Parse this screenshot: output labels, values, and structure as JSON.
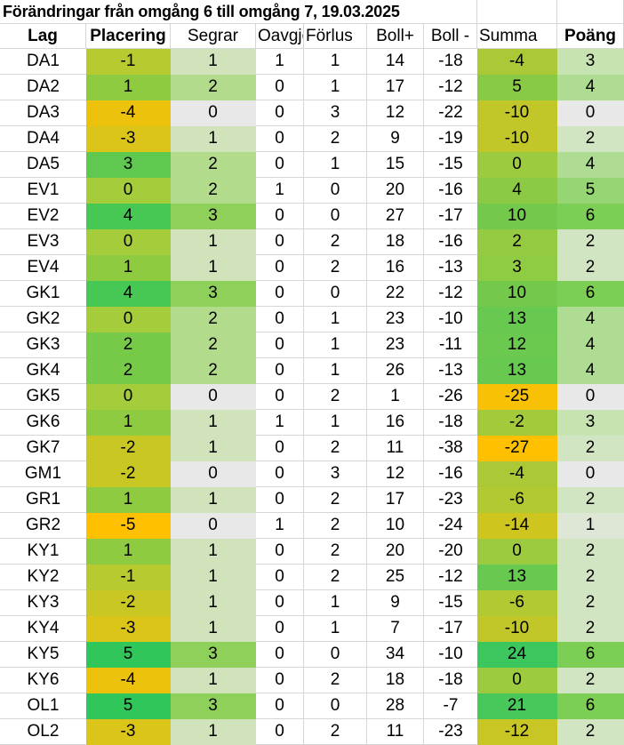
{
  "title": "Förändringar från omgång 6 till omgång 7, 19.03.2025",
  "colors": {
    "gridline": "#D6D6D6",
    "text": "#000000",
    "background": "#FFFFFF",
    "scale_min_gold": "#FFC000",
    "scale_max_green": "#30C65A",
    "scale_neutral_gray": "#E9E8E8"
  },
  "color_scales": {
    "placering": [
      [
        -5,
        "#FFC000"
      ],
      [
        0,
        "#A5CC3B"
      ],
      [
        5,
        "#30C65A"
      ]
    ],
    "segrar": [
      [
        0,
        "#E9E8E8"
      ],
      [
        1.5,
        "#C4E1A5"
      ],
      [
        3,
        "#8FD05A"
      ]
    ],
    "summa": [
      [
        -27,
        "#FFC000"
      ],
      [
        0,
        "#9CCB40"
      ],
      [
        24,
        "#3CC75E"
      ]
    ],
    "poang": [
      [
        0,
        "#E9E8E8"
      ],
      [
        3,
        "#C7E3B1"
      ],
      [
        6,
        "#7CCE55"
      ]
    ]
  },
  "table": {
    "columns": [
      {
        "key": "lag",
        "label": "Lag",
        "bold": true,
        "header_align": "center",
        "scale": null
      },
      {
        "key": "placering",
        "label": "Placering",
        "bold": true,
        "header_align": "center",
        "scale": "placering"
      },
      {
        "key": "segrar",
        "label": "Segrar",
        "bold": false,
        "header_align": "center",
        "scale": "segrar"
      },
      {
        "key": "oavgjorda",
        "label": "Oavgjo",
        "bold": false,
        "header_align": "left",
        "scale": null
      },
      {
        "key": "forlust",
        "label": "Förlus",
        "bold": false,
        "header_align": "left",
        "scale": null
      },
      {
        "key": "bollplus",
        "label": "Boll+",
        "bold": false,
        "header_align": "center",
        "scale": null
      },
      {
        "key": "bollminus",
        "label": "Boll -",
        "bold": false,
        "header_align": "center",
        "scale": null
      },
      {
        "key": "summa",
        "label": "Summa",
        "bold": false,
        "header_align": "left",
        "scale": "summa"
      },
      {
        "key": "poang",
        "label": "Poäng",
        "bold": true,
        "header_align": "center",
        "scale": "poang"
      }
    ],
    "rows": [
      [
        "DA1",
        -1,
        1,
        1,
        1,
        14,
        -18,
        -4,
        3
      ],
      [
        "DA2",
        1,
        2,
        0,
        1,
        17,
        -12,
        5,
        4
      ],
      [
        "DA3",
        -4,
        0,
        0,
        3,
        12,
        -22,
        -10,
        0
      ],
      [
        "DA4",
        -3,
        1,
        0,
        2,
        9,
        -19,
        -10,
        2
      ],
      [
        "DA5",
        3,
        2,
        0,
        1,
        15,
        -15,
        0,
        4
      ],
      [
        "EV1",
        0,
        2,
        1,
        0,
        20,
        -16,
        4,
        5
      ],
      [
        "EV2",
        4,
        3,
        0,
        0,
        27,
        -17,
        10,
        6
      ],
      [
        "EV3",
        0,
        1,
        0,
        2,
        18,
        -16,
        2,
        2
      ],
      [
        "EV4",
        1,
        1,
        0,
        2,
        16,
        -13,
        3,
        2
      ],
      [
        "GK1",
        4,
        3,
        0,
        0,
        22,
        -12,
        10,
        6
      ],
      [
        "GK2",
        0,
        2,
        0,
        1,
        23,
        -10,
        13,
        4
      ],
      [
        "GK3",
        2,
        2,
        0,
        1,
        23,
        -11,
        12,
        4
      ],
      [
        "GK4",
        2,
        2,
        0,
        1,
        26,
        -13,
        13,
        4
      ],
      [
        "GK5",
        0,
        0,
        0,
        2,
        1,
        -26,
        -25,
        0
      ],
      [
        "GK6",
        1,
        1,
        1,
        1,
        16,
        -18,
        -2,
        3
      ],
      [
        "GK7",
        -2,
        1,
        0,
        2,
        11,
        -38,
        -27,
        2
      ],
      [
        "GM1",
        -2,
        0,
        0,
        3,
        12,
        -16,
        -4,
        0
      ],
      [
        "GR1",
        1,
        1,
        0,
        2,
        17,
        -23,
        -6,
        2
      ],
      [
        "GR2",
        -5,
        0,
        1,
        2,
        10,
        -24,
        -14,
        1
      ],
      [
        "KY1",
        1,
        1,
        0,
        2,
        20,
        -20,
        0,
        2
      ],
      [
        "KY2",
        -1,
        1,
        0,
        2,
        25,
        -12,
        13,
        2
      ],
      [
        "KY3",
        -2,
        1,
        0,
        1,
        9,
        -15,
        -6,
        2
      ],
      [
        "KY4",
        -3,
        1,
        0,
        1,
        7,
        -17,
        -10,
        2
      ],
      [
        "KY5",
        5,
        3,
        0,
        0,
        34,
        -10,
        24,
        6
      ],
      [
        "KY6",
        -4,
        1,
        0,
        2,
        18,
        -18,
        0,
        2
      ],
      [
        "OL1",
        5,
        3,
        0,
        0,
        28,
        -7,
        21,
        6
      ],
      [
        "OL2",
        -3,
        1,
        0,
        2,
        11,
        -23,
        -12,
        2
      ]
    ]
  }
}
